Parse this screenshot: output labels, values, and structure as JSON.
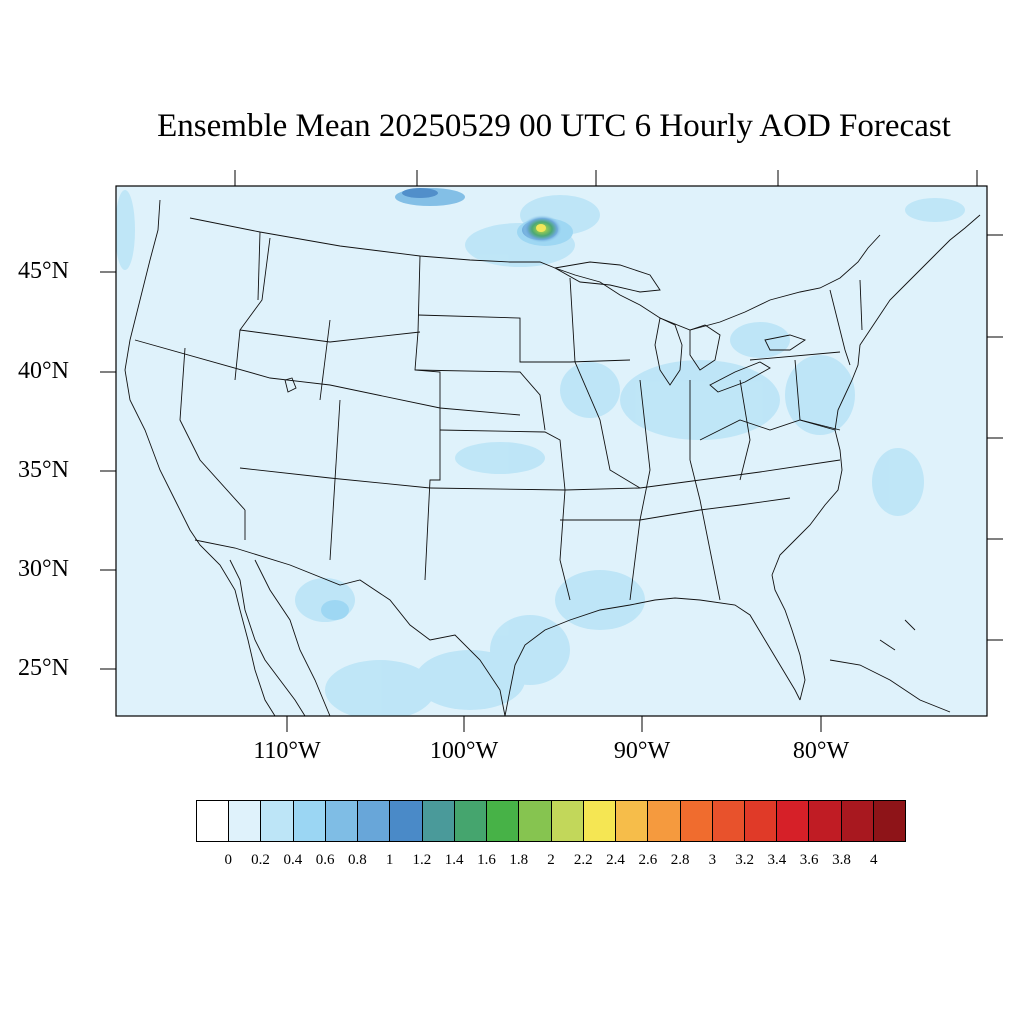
{
  "title": "Ensemble Mean 20250529 00 UTC 6 Hourly AOD Forecast",
  "map": {
    "region": "Contiguous United States",
    "background_color": "#dff2fb",
    "lat_labels": [
      "45°N",
      "40°N",
      "35°N",
      "30°N",
      "25°N"
    ],
    "lon_labels": [
      "110°W",
      "100°W",
      "90°W",
      "80°W"
    ],
    "features": [
      {
        "name": "smoke-plume-north-minnesota-ontario",
        "peak_aod": 2.2,
        "color": "#f5e653"
      },
      {
        "name": "smoke-band-saskatchewan-border",
        "peak_aod": 0.8
      },
      {
        "name": "haze-great-lakes-ohio-valley",
        "peak_aod": 0.4
      },
      {
        "name": "haze-mid-atlantic",
        "peak_aod": 0.4
      },
      {
        "name": "dust-haze-mexico-texas",
        "peak_aod": 0.6
      },
      {
        "name": "haze-kansas-oklahoma",
        "peak_aod": 0.4
      },
      {
        "name": "haze-gulf-coast",
        "peak_aod": 0.4
      },
      {
        "name": "haze-atlantic-offshore",
        "peak_aod": 0.4
      }
    ]
  },
  "colorbar": {
    "labels": [
      "0",
      "0.2",
      "0.4",
      "0.6",
      "0.8",
      "1",
      "1.2",
      "1.4",
      "1.6",
      "1.8",
      "2",
      "2.2",
      "2.4",
      "2.6",
      "2.8",
      "3",
      "3.2",
      "3.4",
      "3.6",
      "3.8",
      "4"
    ],
    "colors": [
      "#ffffff",
      "#dff2fb",
      "#bde5f7",
      "#9bd6f3",
      "#7fbde5",
      "#68a6d9",
      "#4a8ac8",
      "#4a9a9a",
      "#45a56e",
      "#47b247",
      "#86c450",
      "#c2d75a",
      "#f5e653",
      "#f6bd4a",
      "#f59a3e",
      "#f06c2e",
      "#e8522c",
      "#e03a28",
      "#d62028",
      "#c01c24",
      "#a8181f",
      "#8e1418"
    ]
  }
}
